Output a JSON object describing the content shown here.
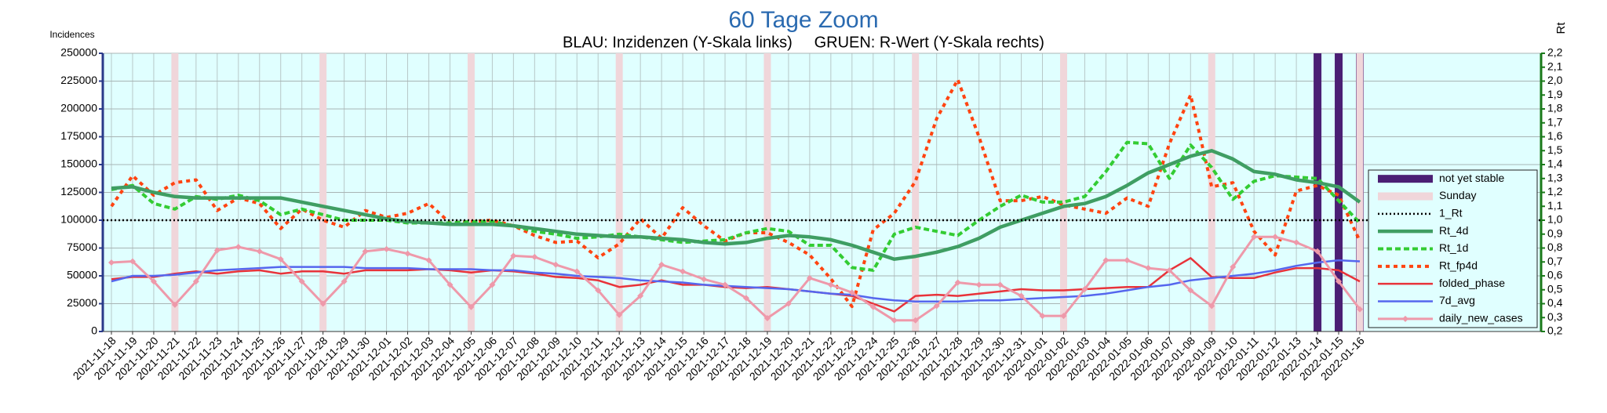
{
  "chart_data": {
    "type": "line",
    "title": "60 Tage Zoom",
    "subtitle": "BLAU: Inzidenzen (Y-Skala links)     GRUEN: R-Wert (Y-Skala rechts)",
    "ylabel": "Incidences",
    "y2label": "Rt",
    "categories": [
      "2021-11-18",
      "2021-11-19",
      "2021-11-20",
      "2021-11-21",
      "2021-11-22",
      "2021-11-23",
      "2021-11-24",
      "2021-11-25",
      "2021-11-26",
      "2021-11-27",
      "2021-11-28",
      "2021-11-29",
      "2021-11-30",
      "2021-12-01",
      "2021-12-02",
      "2021-12-03",
      "2021-12-04",
      "2021-12-05",
      "2021-12-06",
      "2021-12-07",
      "2021-12-08",
      "2021-12-09",
      "2021-12-10",
      "2021-12-11",
      "2021-12-12",
      "2021-12-13",
      "2021-12-14",
      "2021-12-15",
      "2021-12-16",
      "2021-12-17",
      "2021-12-18",
      "2021-12-19",
      "2021-12-20",
      "2021-12-21",
      "2021-12-22",
      "2021-12-23",
      "2021-12-24",
      "2021-12-25",
      "2021-12-26",
      "2021-12-27",
      "2021-12-28",
      "2021-12-29",
      "2021-12-30",
      "2021-12-31",
      "2022-01-01",
      "2022-01-02",
      "2022-01-03",
      "2022-01-04",
      "2022-01-05",
      "2022-01-06",
      "2022-01-07",
      "2022-01-08",
      "2022-01-09",
      "2022-01-10",
      "2022-01-11",
      "2022-01-12",
      "2022-01-13",
      "2022-01-14",
      "2022-01-15",
      "2022-01-16"
    ],
    "highlights": [
      {
        "name": "not yet stable",
        "color": "#4b1f74",
        "x": [
          "2022-01-14",
          "2022-01-15",
          "2022-01-16"
        ]
      },
      {
        "name": "Sunday",
        "color": "#f0d6da",
        "x": [
          "2021-11-21",
          "2021-11-28",
          "2021-12-05",
          "2021-12-12",
          "2021-12-19",
          "2021-12-26",
          "2022-01-02",
          "2022-01-09",
          "2022-01-16"
        ]
      }
    ],
    "series": [
      {
        "name": "1_Rt",
        "color": "#000000",
        "style": "dotted",
        "axis": "y2",
        "value": 1
      },
      {
        "name": "Rt_4d",
        "color": "#3f9e63",
        "style": "thick",
        "axis": "y2",
        "values": [
          1.23,
          1.24,
          1.2,
          1.17,
          1.16,
          1.16,
          1.16,
          1.16,
          1.16,
          1.13,
          1.1,
          1.07,
          1.04,
          1.01,
          0.99,
          0.98,
          0.97,
          0.97,
          0.97,
          0.96,
          0.94,
          0.92,
          0.9,
          0.89,
          0.88,
          0.88,
          0.87,
          0.86,
          0.84,
          0.83,
          0.84,
          0.87,
          0.89,
          0.88,
          0.86,
          0.82,
          0.77,
          0.72,
          0.74,
          0.77,
          0.81,
          0.87,
          0.95,
          1.0,
          1.05,
          1.1,
          1.12,
          1.17,
          1.25,
          1.34,
          1.4,
          1.46,
          1.5,
          1.44,
          1.35,
          1.33,
          1.29,
          1.27,
          1.24,
          1.13
        ]
      },
      {
        "name": "Rt_1d",
        "color": "#33cc33",
        "style": "dashed",
        "axis": "y2",
        "values": [
          1.22,
          1.25,
          1.12,
          1.08,
          1.17,
          1.15,
          1.18,
          1.14,
          1.04,
          1.08,
          1.04,
          1.0,
          1.0,
          1.0,
          0.98,
          0.98,
          0.98,
          0.99,
          0.99,
          0.96,
          0.92,
          0.9,
          0.87,
          0.88,
          0.9,
          0.88,
          0.86,
          0.84,
          0.85,
          0.86,
          0.91,
          0.94,
          0.92,
          0.82,
          0.82,
          0.66,
          0.64,
          0.9,
          0.95,
          0.92,
          0.89,
          1.0,
          1.1,
          1.18,
          1.13,
          1.13,
          1.17,
          1.35,
          1.56,
          1.55,
          1.3,
          1.54,
          1.38,
          1.15,
          1.28,
          1.32,
          1.31,
          1.3,
          1.14,
          0.98
        ]
      },
      {
        "name": "Rt_fp4d",
        "color": "#ff4411",
        "style": "dotted-thick",
        "axis": "y2",
        "values": [
          1.1,
          1.32,
          1.18,
          1.27,
          1.29,
          1.07,
          1.16,
          1.12,
          0.94,
          1.08,
          1.0,
          0.95,
          1.07,
          1.02,
          1.05,
          1.12,
          0.98,
          0.99,
          1.0,
          0.96,
          0.89,
          0.84,
          0.85,
          0.73,
          0.83,
          1.01,
          0.87,
          1.09,
          0.96,
          0.85,
          0.91,
          0.91,
          0.84,
          0.75,
          0.58,
          0.38,
          0.93,
          1.05,
          1.28,
          1.73,
          2.01,
          1.6,
          1.14,
          1.14,
          1.17,
          1.11,
          1.08,
          1.05,
          1.16,
          1.1,
          1.55,
          1.9,
          1.24,
          1.27,
          0.92,
          0.75,
          1.21,
          1.25,
          1.18,
          0.85
        ]
      },
      {
        "name": "folded_phase",
        "color": "#e8333a",
        "style": "solid",
        "values": [
          47000,
          49000,
          49000,
          52000,
          54000,
          52000,
          54000,
          55000,
          52000,
          54000,
          54000,
          52000,
          55000,
          55000,
          55000,
          56000,
          55000,
          53000,
          55000,
          54000,
          52000,
          49000,
          48000,
          46000,
          40000,
          42000,
          46000,
          42000,
          42000,
          40000,
          39000,
          40000,
          38000,
          36000,
          34000,
          32000,
          25000,
          18000,
          32000,
          33000,
          32000,
          34000,
          36000,
          38000,
          37000,
          37000,
          38000,
          39000,
          40000,
          40000,
          55000,
          66000,
          49000,
          48000,
          48000,
          53000,
          57000,
          57000,
          55000,
          45000
        ]
      },
      {
        "name": "7d_avg",
        "color": "#5566ee",
        "style": "solid",
        "values": [
          45000,
          50000,
          50000,
          51000,
          53000,
          55000,
          56000,
          57000,
          58000,
          58000,
          58000,
          58000,
          57000,
          57000,
          57000,
          56000,
          56000,
          56000,
          55000,
          55000,
          53000,
          52000,
          50000,
          49000,
          48000,
          46000,
          45000,
          44000,
          42000,
          41000,
          40000,
          39000,
          38000,
          36000,
          34000,
          33000,
          30000,
          28000,
          27000,
          27000,
          27000,
          28000,
          28000,
          29000,
          30000,
          31000,
          32000,
          34000,
          37000,
          40000,
          42000,
          46000,
          48000,
          50000,
          52000,
          55000,
          59000,
          62000,
          64000,
          63000
        ]
      },
      {
        "name": "daily_new_cases",
        "color": "#ee99aa",
        "style": "marker",
        "values": [
          62000,
          63000,
          45000,
          24000,
          45000,
          73000,
          76000,
          72000,
          65000,
          45000,
          25000,
          45000,
          72000,
          74000,
          70000,
          64000,
          42000,
          22000,
          42000,
          68000,
          67000,
          60000,
          54000,
          37000,
          15000,
          32000,
          60000,
          54000,
          47000,
          42000,
          30000,
          12000,
          25000,
          48000,
          42000,
          35000,
          22000,
          10000,
          10000,
          23000,
          44000,
          42000,
          42000,
          32000,
          14000,
          14000,
          38000,
          64000,
          64000,
          57000,
          55000,
          37000,
          23000,
          58000,
          85000,
          85000,
          80000,
          72000,
          45000,
          20000
        ]
      }
    ],
    "ylim": [
      0,
      250000
    ],
    "yticks": [
      0,
      25000,
      50000,
      75000,
      100000,
      125000,
      150000,
      175000,
      200000,
      225000,
      250000
    ],
    "y2lim": [
      0.2,
      2.2
    ],
    "y2ticks": [
      {
        "value": 0.2,
        "label": "0,2"
      },
      {
        "value": 0.3,
        "label": "0,3"
      },
      {
        "value": 0.4,
        "label": "0,4"
      },
      {
        "value": 0.5,
        "label": "0,5"
      },
      {
        "value": 0.6,
        "label": "0,6"
      },
      {
        "value": 0.7,
        "label": "0,7"
      },
      {
        "value": 0.8,
        "label": "0,8"
      },
      {
        "value": 0.9,
        "label": "0,9"
      },
      {
        "value": 1.0,
        "label": "1,0"
      },
      {
        "value": 1.1,
        "label": "1,1"
      },
      {
        "value": 1.2,
        "label": "1,2"
      },
      {
        "value": 1.3,
        "label": "1,3"
      },
      {
        "value": 1.4,
        "label": "1,4"
      },
      {
        "value": 1.5,
        "label": "1,5"
      },
      {
        "value": 1.6,
        "label": "1,6"
      },
      {
        "value": 1.7,
        "label": "1,7"
      },
      {
        "value": 1.8,
        "label": "1,8"
      },
      {
        "value": 1.9,
        "label": "1,9"
      },
      {
        "value": 2.0,
        "label": "2,0"
      },
      {
        "value": 2.1,
        "label": "2,1"
      },
      {
        "value": 2.2,
        "label": "2,2"
      }
    ],
    "grid": true,
    "background": "#e0ffff",
    "legend": "right"
  }
}
